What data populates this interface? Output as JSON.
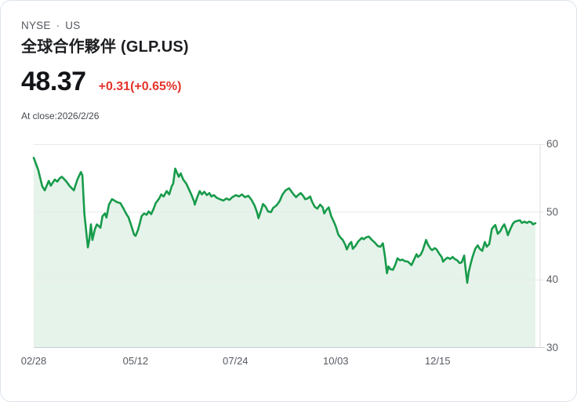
{
  "header": {
    "exchange": "NYSE",
    "separator": "·",
    "region": "US",
    "title": "全球合作夥伴 (GLP.US)",
    "price": "48.37",
    "change": "+0.31(+0.65%)",
    "as_of": "At close:2026/2/26"
  },
  "colors": {
    "line_green": "#189b4b",
    "area_fill": "#e6f3ea",
    "change_red": "#e5342c",
    "grid": "#e7e9ec",
    "axis": "#c9cdd3",
    "axis_vertical": "#d9dce1"
  },
  "chart_data": {
    "type": "area",
    "title": "GLP.US one-year closing price",
    "xlabel": "",
    "ylabel": "",
    "ylim": [
      30,
      60
    ],
    "grid": true,
    "legend_position": "none",
    "y_ticks": [
      60,
      50,
      40,
      30
    ],
    "x_ticks": [
      {
        "label": "02/28",
        "f": 0.0
      },
      {
        "label": "05/12",
        "f": 0.203
      },
      {
        "label": "07/24",
        "f": 0.402
      },
      {
        "label": "10/03",
        "f": 0.602
      },
      {
        "label": "12/15",
        "f": 0.805
      }
    ],
    "points": [
      [
        0,
        58
      ],
      [
        0.005,
        57
      ],
      [
        0.009,
        56.2
      ],
      [
        0.013,
        55
      ],
      [
        0.017,
        53.8
      ],
      [
        0.022,
        53.2
      ],
      [
        0.03,
        54.6
      ],
      [
        0.034,
        53.9
      ],
      [
        0.042,
        54.8
      ],
      [
        0.047,
        54.5
      ],
      [
        0.052,
        55
      ],
      [
        0.056,
        55.2
      ],
      [
        0.064,
        54.6
      ],
      [
        0.072,
        53.8
      ],
      [
        0.08,
        53.2
      ],
      [
        0.087,
        54.8
      ],
      [
        0.094,
        55.9
      ],
      [
        0.097,
        55.4
      ],
      [
        0.101,
        49.8
      ],
      [
        0.108,
        44.8
      ],
      [
        0.111,
        46
      ],
      [
        0.114,
        48.2
      ],
      [
        0.117,
        45.9
      ],
      [
        0.122,
        47.5
      ],
      [
        0.126,
        48.2
      ],
      [
        0.133,
        47.7
      ],
      [
        0.137,
        49.4
      ],
      [
        0.142,
        49.8
      ],
      [
        0.145,
        49.2
      ],
      [
        0.15,
        51.1
      ],
      [
        0.156,
        51.9
      ],
      [
        0.161,
        51.7
      ],
      [
        0.165,
        51.5
      ],
      [
        0.173,
        51.3
      ],
      [
        0.179,
        50.5
      ],
      [
        0.184,
        49.8
      ],
      [
        0.189,
        49.2
      ],
      [
        0.195,
        47.9
      ],
      [
        0.2,
        46.7
      ],
      [
        0.203,
        46.5
      ],
      [
        0.208,
        47.4
      ],
      [
        0.211,
        48.2
      ],
      [
        0.215,
        49.4
      ],
      [
        0.22,
        49.8
      ],
      [
        0.225,
        49.6
      ],
      [
        0.229,
        50.1
      ],
      [
        0.234,
        49.7
      ],
      [
        0.239,
        50.5
      ],
      [
        0.243,
        51.3
      ],
      [
        0.25,
        52
      ],
      [
        0.254,
        52.6
      ],
      [
        0.259,
        52.3
      ],
      [
        0.265,
        53.1
      ],
      [
        0.27,
        52.6
      ],
      [
        0.275,
        53.8
      ],
      [
        0.278,
        54.2
      ],
      [
        0.282,
        56.4
      ],
      [
        0.289,
        55.2
      ],
      [
        0.293,
        55.7
      ],
      [
        0.298,
        54.8
      ],
      [
        0.304,
        54.2
      ],
      [
        0.309,
        53.4
      ],
      [
        0.314,
        52.6
      ],
      [
        0.32,
        51.5
      ],
      [
        0.321,
        51.1
      ],
      [
        0.326,
        52.2
      ],
      [
        0.331,
        53.1
      ],
      [
        0.335,
        52.6
      ],
      [
        0.34,
        53
      ],
      [
        0.345,
        52.5
      ],
      [
        0.35,
        52.8
      ],
      [
        0.354,
        52.3
      ],
      [
        0.359,
        52.5
      ],
      [
        0.365,
        52.1
      ],
      [
        0.371,
        51.9
      ],
      [
        0.378,
        51.7
      ],
      [
        0.384,
        52
      ],
      [
        0.39,
        51.8
      ],
      [
        0.396,
        52.2
      ],
      [
        0.403,
        52.5
      ],
      [
        0.409,
        52.3
      ],
      [
        0.415,
        52.6
      ],
      [
        0.421,
        52.2
      ],
      [
        0.428,
        52.4
      ],
      [
        0.434,
        51.8
      ],
      [
        0.44,
        51
      ],
      [
        0.445,
        50
      ],
      [
        0.448,
        49.1
      ],
      [
        0.452,
        50
      ],
      [
        0.457,
        51.2
      ],
      [
        0.462,
        50.8
      ],
      [
        0.467,
        50.1
      ],
      [
        0.473,
        50
      ],
      [
        0.477,
        50.6
      ],
      [
        0.484,
        51
      ],
      [
        0.49,
        51.6
      ],
      [
        0.496,
        52.6
      ],
      [
        0.502,
        53.2
      ],
      [
        0.509,
        53.5
      ],
      [
        0.513,
        53.1
      ],
      [
        0.518,
        52.6
      ],
      [
        0.523,
        52.2
      ],
      [
        0.527,
        52.5
      ],
      [
        0.532,
        52.8
      ],
      [
        0.537,
        52.4
      ],
      [
        0.541,
        51.9
      ],
      [
        0.546,
        52
      ],
      [
        0.551,
        52.3
      ],
      [
        0.555,
        51.5
      ],
      [
        0.56,
        50.8
      ],
      [
        0.565,
        50.5
      ],
      [
        0.571,
        51.1
      ],
      [
        0.576,
        50.7
      ],
      [
        0.579,
        49.8
      ],
      [
        0.583,
        50.3
      ],
      [
        0.588,
        50.7
      ],
      [
        0.593,
        49.4
      ],
      [
        0.598,
        48.6
      ],
      [
        0.602,
        47.9
      ],
      [
        0.607,
        46.7
      ],
      [
        0.612,
        46.2
      ],
      [
        0.616,
        45.9
      ],
      [
        0.621,
        45.2
      ],
      [
        0.624,
        44.5
      ],
      [
        0.629,
        45.3
      ],
      [
        0.633,
        45.6
      ],
      [
        0.636,
        44.6
      ],
      [
        0.641,
        45
      ],
      [
        0.647,
        45.7
      ],
      [
        0.654,
        46.2
      ],
      [
        0.658,
        46
      ],
      [
        0.663,
        46.3
      ],
      [
        0.668,
        46.4
      ],
      [
        0.674,
        45.9
      ],
      [
        0.68,
        45.5
      ],
      [
        0.686,
        45
      ],
      [
        0.691,
        44.9
      ],
      [
        0.696,
        45.4
      ],
      [
        0.7,
        43.5
      ],
      [
        0.704,
        41
      ],
      [
        0.707,
        42
      ],
      [
        0.711,
        41.6
      ],
      [
        0.716,
        41.5
      ],
      [
        0.721,
        42.3
      ],
      [
        0.725,
        43.2
      ],
      [
        0.73,
        42.9
      ],
      [
        0.735,
        43
      ],
      [
        0.739,
        42.8
      ],
      [
        0.746,
        42.7
      ],
      [
        0.75,
        42.4
      ],
      [
        0.753,
        42.2
      ],
      [
        0.758,
        43
      ],
      [
        0.763,
        43.8
      ],
      [
        0.766,
        43.4
      ],
      [
        0.771,
        43.7
      ],
      [
        0.775,
        44.3
      ],
      [
        0.782,
        45.9
      ],
      [
        0.786,
        45.2
      ],
      [
        0.791,
        44.6
      ],
      [
        0.794,
        44.4
      ],
      [
        0.799,
        44.7
      ],
      [
        0.803,
        44.5
      ],
      [
        0.808,
        43.9
      ],
      [
        0.813,
        43.4
      ],
      [
        0.816,
        42.7
      ],
      [
        0.821,
        43.1
      ],
      [
        0.825,
        43.3
      ],
      [
        0.83,
        43.1
      ],
      [
        0.835,
        43.4
      ],
      [
        0.839,
        43.1
      ],
      [
        0.844,
        42.9
      ],
      [
        0.849,
        42.5
      ],
      [
        0.853,
        42.6
      ],
      [
        0.858,
        43.6
      ],
      [
        0.861,
        41.5
      ],
      [
        0.864,
        39.6
      ],
      [
        0.867,
        41.2
      ],
      [
        0.871,
        42.4
      ],
      [
        0.875,
        43.5
      ],
      [
        0.88,
        44.6
      ],
      [
        0.885,
        45.1
      ],
      [
        0.889,
        44.6
      ],
      [
        0.894,
        44.3
      ],
      [
        0.899,
        45.6
      ],
      [
        0.903,
        44.9
      ],
      [
        0.908,
        45.3
      ],
      [
        0.913,
        47.5
      ],
      [
        0.917,
        47.9
      ],
      [
        0.92,
        48.1
      ],
      [
        0.925,
        46.8
      ],
      [
        0.93,
        47.2
      ],
      [
        0.934,
        47.8
      ],
      [
        0.938,
        48.2
      ],
      [
        0.942,
        47.4
      ],
      [
        0.945,
        46.6
      ],
      [
        0.95,
        47.5
      ],
      [
        0.955,
        48.3
      ],
      [
        0.959,
        48.6
      ],
      [
        0.964,
        48.7
      ],
      [
        0.969,
        48.8
      ],
      [
        0.973,
        48.4
      ],
      [
        0.978,
        48.6
      ],
      [
        0.983,
        48.4
      ],
      [
        0.987,
        48.6
      ],
      [
        0.992,
        48.5
      ],
      [
        0.995,
        48.2
      ],
      [
        1,
        48.37
      ]
    ]
  }
}
